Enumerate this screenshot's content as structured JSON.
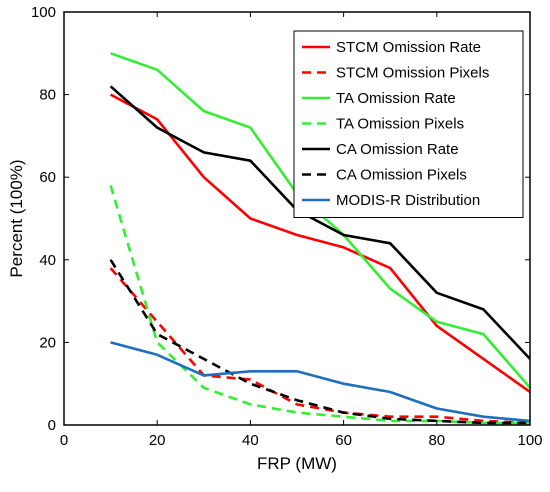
{
  "chart_data": {
    "type": "line",
    "title": "",
    "xlabel": "FRP (MW)",
    "ylabel": "Percent (100%)",
    "xlim": [
      0,
      100
    ],
    "ylim": [
      0,
      100
    ],
    "xticks": [
      "0",
      "20",
      "40",
      "60",
      "80",
      "100"
    ],
    "yticks": [
      "0",
      "20",
      "40",
      "60",
      "80",
      "100"
    ],
    "grid": false,
    "legend_position": "top-right",
    "series": [
      {
        "name": "STCM Omission Rate",
        "color": "#ff0000",
        "style": "solid",
        "x": [
          10,
          20,
          30,
          40,
          50,
          60,
          70,
          80,
          90,
          100
        ],
        "y": [
          80,
          74,
          60,
          50,
          46,
          43,
          38,
          24,
          16,
          8
        ]
      },
      {
        "name": "STCM Omission Pixels",
        "color": "#ff0000",
        "style": "dashed",
        "x": [
          10,
          20,
          30,
          40,
          50,
          60,
          70,
          80,
          90,
          100
        ],
        "y": [
          38,
          25,
          12,
          11,
          5,
          3,
          2,
          2,
          1,
          0.5
        ]
      },
      {
        "name": "TA Omission Rate",
        "color": "#33ee33",
        "style": "solid",
        "x": [
          10,
          20,
          30,
          40,
          50,
          60,
          70,
          80,
          90,
          100
        ],
        "y": [
          90,
          86,
          76,
          72,
          56,
          46,
          33,
          25,
          22,
          9
        ]
      },
      {
        "name": "TA Omission Pixels",
        "color": "#33ee33",
        "style": "dashed",
        "x": [
          10,
          20,
          30,
          40,
          50,
          60,
          70,
          80,
          90,
          100
        ],
        "y": [
          58,
          20,
          9,
          5,
          3,
          2,
          1,
          1,
          0.5,
          0.5
        ]
      },
      {
        "name": "CA Omission Rate",
        "color": "#000000",
        "style": "solid",
        "x": [
          10,
          20,
          30,
          40,
          50,
          60,
          70,
          80,
          90,
          100
        ],
        "y": [
          82,
          72,
          66,
          64,
          52,
          46,
          44,
          32,
          28,
          16
        ]
      },
      {
        "name": "CA Omission Pixels",
        "color": "#000000",
        "style": "dashed",
        "x": [
          10,
          20,
          30,
          40,
          50,
          60,
          70,
          80,
          90,
          100
        ],
        "y": [
          40,
          22,
          16,
          10,
          6,
          3,
          1.5,
          1,
          0.5,
          0.5
        ]
      },
      {
        "name": "MODIS-R Distribution",
        "color": "#1f6fbf",
        "style": "solid",
        "x": [
          10,
          20,
          30,
          40,
          50,
          60,
          70,
          80,
          90,
          100
        ],
        "y": [
          20,
          17,
          12,
          13,
          13,
          10,
          8,
          4,
          2,
          1
        ]
      }
    ]
  }
}
